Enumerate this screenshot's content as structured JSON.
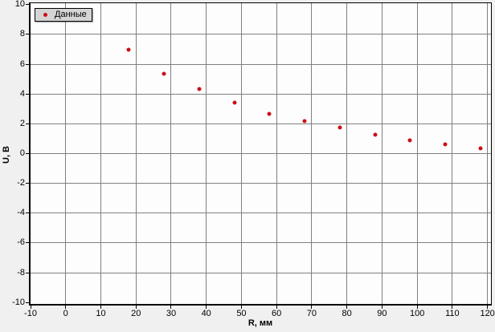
{
  "window": {
    "background": "#f0f0f0"
  },
  "chart_data": {
    "type": "scatter",
    "title": "",
    "xlabel": "R, мм",
    "ylabel": "U, В",
    "xlim": [
      -10,
      120
    ],
    "ylim": [
      -10,
      10
    ],
    "x_ticks": [
      -10,
      0,
      10,
      20,
      30,
      40,
      50,
      60,
      70,
      80,
      90,
      100,
      110,
      120
    ],
    "y_ticks": [
      -10,
      -8,
      -6,
      -4,
      -2,
      0,
      2,
      4,
      6,
      8,
      10
    ],
    "grid": true,
    "legend_position": "top-left",
    "series": [
      {
        "name": "Данные",
        "marker": "circle",
        "color": "#cc1016",
        "points": [
          [
            18,
            6.95
          ],
          [
            28,
            5.37
          ],
          [
            38,
            4.32
          ],
          [
            48,
            3.44
          ],
          [
            58,
            2.66
          ],
          [
            68,
            2.17
          ],
          [
            78,
            1.73
          ],
          [
            88,
            1.26
          ],
          [
            98,
            0.9
          ],
          [
            108,
            0.63
          ],
          [
            118,
            0.33
          ]
        ]
      }
    ],
    "colors": {
      "plot_background": "#fdfdfd",
      "grid": "#808080",
      "axis": "#000000",
      "marker": "#cc1016",
      "legend_background": "#d4d4d4",
      "text": "#000000"
    }
  }
}
